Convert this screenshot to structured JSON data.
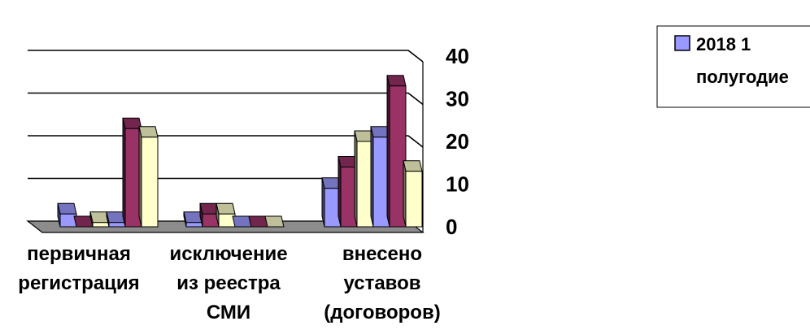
{
  "chart_data": {
    "type": "bar",
    "categories": [
      [
        "первичная",
        "регистрация"
      ],
      [
        "исключение",
        "из реестра",
        "СМИ"
      ],
      [
        "внесено",
        "уставов",
        "(договоров)"
      ]
    ],
    "series": [
      {
        "name": "2018 1 полугодие",
        "color": "#9999ff",
        "values": [
          3,
          1,
          9
        ]
      },
      {
        "name": "",
        "color": "#993366",
        "values": [
          0,
          3,
          14
        ]
      },
      {
        "name": "",
        "color": "#ffffcc",
        "values": [
          1,
          3,
          20
        ]
      },
      {
        "name": "",
        "color": "#9999ff",
        "values": [
          1,
          0,
          21
        ]
      },
      {
        "name": "",
        "color": "#993366",
        "values": [
          23,
          0,
          33
        ]
      },
      {
        "name": "",
        "color": "#ffffcc",
        "values": [
          21,
          0,
          13
        ]
      }
    ],
    "yticks": [
      0,
      10,
      20,
      30,
      40
    ],
    "ylim": [
      0,
      40
    ],
    "grid": true,
    "three_d": true,
    "legend": {
      "position": "right",
      "entries": [
        [
          "2018 1",
          "полугодие"
        ]
      ]
    }
  }
}
